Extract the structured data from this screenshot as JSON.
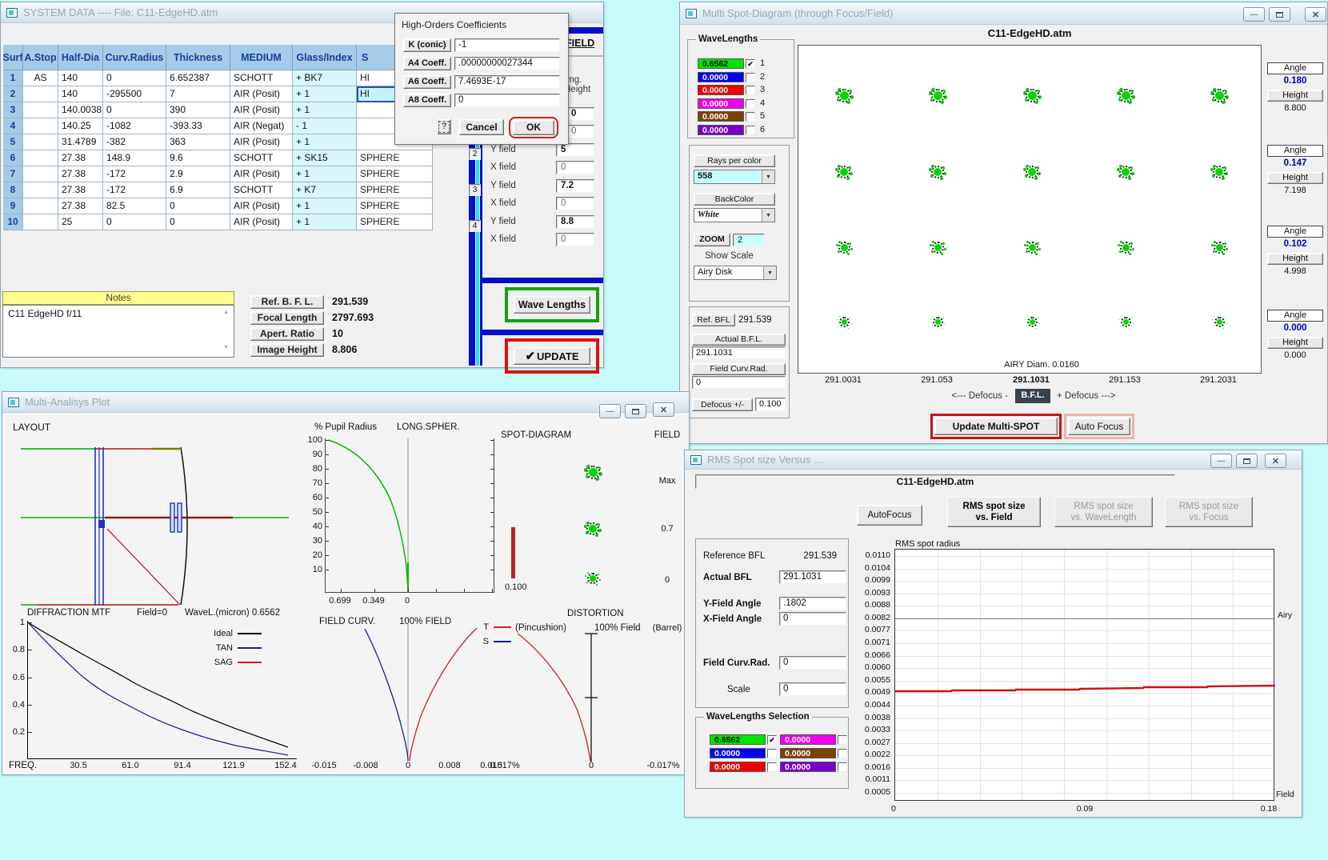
{
  "desktop_bg": "#c9fafa",
  "system_window": {
    "title": "SYSTEM  DATA  ----  File:  C11-EdgeHD.atm",
    "table": {
      "headers": [
        "Surf",
        "A.Stop",
        "Half-Dia",
        "Curv.Radius",
        "Thickness",
        "MEDIUM",
        "Glass/Index",
        "S"
      ],
      "rows": [
        [
          "1",
          "AS",
          "140",
          "0",
          "6.652387",
          "SCHOTT",
          "+ BK7",
          "HI"
        ],
        [
          "2",
          "",
          "140",
          "-295500",
          "7",
          "AIR (Posit)",
          "+ 1",
          "HI"
        ],
        [
          "3",
          "",
          "140.0038",
          "0",
          "390",
          "AIR (Posit)",
          "+ 1",
          ""
        ],
        [
          "4",
          "",
          "140.25",
          "-1082",
          "-393.33",
          "AIR (Negat)",
          "- 1",
          ""
        ],
        [
          "5",
          "",
          "31.4789",
          "-382",
          "363",
          "AIR (Posit)",
          "+ 1",
          ""
        ],
        [
          "6",
          "",
          "27.38",
          "148.9",
          "9.6",
          "SCHOTT",
          "+ SK15",
          "SPHERE"
        ],
        [
          "7",
          "",
          "27.38",
          "-172",
          "2.9",
          "AIR (Posit)",
          "+ 1",
          "SPHERE"
        ],
        [
          "8",
          "",
          "27.38",
          "-172",
          "6.9",
          "SCHOTT",
          "+ K7",
          "SPHERE"
        ],
        [
          "9",
          "",
          "27.38",
          "82.5",
          "0",
          "AIR (Posit)",
          "+ 1",
          "SPHERE"
        ],
        [
          "10",
          "",
          "25",
          "0",
          "0",
          "AIR (Posit)",
          "+ 1",
          "SPHERE"
        ]
      ],
      "selected_cell": {
        "row": 2,
        "col": 7
      }
    },
    "notes": {
      "header": "Notes",
      "text": "C11 EdgeHD f/11"
    },
    "summary": [
      {
        "label": "Ref.   B. F. L.",
        "value": "291.539"
      },
      {
        "label": "Focal  Length",
        "value": "2797.693"
      },
      {
        "label": "Apert. Ratio",
        "value": "10"
      },
      {
        "label": "Image Height",
        "value": "8.806"
      }
    ],
    "field_panel": {
      "title": "FIELD",
      "img_height_label": "Img. Height",
      "groups": [
        {
          "n": "1",
          "y_label": "Y field",
          "y": "0",
          "x_label": "X field",
          "x": "0"
        },
        {
          "n": "2",
          "y_label": "Y field",
          "y": "5",
          "x_label": "X field",
          "x": "0"
        },
        {
          "n": "3",
          "y_label": "Y field",
          "y": "7.2",
          "x_label": "X field",
          "x": "0"
        },
        {
          "n": "4",
          "y_label": "Y field",
          "y": "8.8",
          "x_label": "X field",
          "x": "0"
        }
      ]
    },
    "wave_lengths_button": "Wave Lengths",
    "update_check": "✔",
    "update_button": "UPDATE"
  },
  "high_orders_dialog": {
    "title": "High-Orders Coefficients",
    "fields": [
      {
        "label": "K (conic)",
        "value": "-1"
      },
      {
        "label": "A4 Coeff.",
        "value": ".00000000027344"
      },
      {
        "label": "A6 Coeff.",
        "value": "7.4693E-17"
      },
      {
        "label": "A8 Coeff.",
        "value": "0"
      }
    ],
    "help_button": "?",
    "cancel_button": "Cancel",
    "ok_button": "OK"
  },
  "spot_window": {
    "title": "Multi Spot-Diagram   (through Focus/Field)",
    "chart_title": "C11-EdgeHD.atm",
    "wavelengths": {
      "title": "WaveLengths",
      "rows": [
        {
          "value": "0.6562",
          "color": "#00e400",
          "text_color": "#000000",
          "checked": true,
          "num": "1"
        },
        {
          "value": "0.0000",
          "color": "#0000ee",
          "text_color": "#ffffff",
          "checked": false,
          "num": "2"
        },
        {
          "value": "0.0000",
          "color": "#ee0000",
          "text_color": "#ffffff",
          "checked": false,
          "num": "3"
        },
        {
          "value": "0.0000",
          "color": "#ee00ee",
          "text_color": "#ffffff",
          "checked": false,
          "num": "4"
        },
        {
          "value": "0.0000",
          "color": "#7a4208",
          "text_color": "#ffffff",
          "checked": false,
          "num": "5"
        },
        {
          "value": "0.0000",
          "color": "#7700cc",
          "text_color": "#ffffff",
          "checked": false,
          "num": "6"
        }
      ]
    },
    "rays_per_color_label": "Rays per color",
    "rays_per_color_value": "558",
    "backcolor_label": "BackColor",
    "backcolor_value": "White",
    "zoom_label": "ZOOM",
    "zoom_value": "2",
    "show_scale_label": "Show Scale",
    "show_scale_value": "Airy Disk",
    "ref_bfl_label": "Ref.  BFL",
    "ref_bfl_value": "291.539",
    "actual_bfl_label": "Actual  B.F.L.",
    "actual_bfl_value": "291.1031",
    "field_curv_label": "Field Curv.Rad.",
    "field_curv_value": "0",
    "defocus_label": "Defocus +/-",
    "defocus_value": "0.100",
    "airy_note": "AIRY Diam. 0.0160",
    "axis_labels": [
      "291.0031",
      "291.053",
      "291.1031",
      "291.153",
      "291.2031"
    ],
    "axis_bold_index": 2,
    "caption_left": "<---  Defocus  -",
    "bfl_badge": "B.F.L.",
    "caption_right": "+ Defocus --->",
    "update_button": "Update  Multi-SPOT",
    "autofocus_button": "Auto Focus",
    "angle_label": "Angle",
    "height_label": "Height",
    "field_points": [
      {
        "angle": "0.180",
        "height": "8.800"
      },
      {
        "angle": "0.147",
        "height": "7.198"
      },
      {
        "angle": "0.102",
        "height": "4.998"
      },
      {
        "angle": "0.000",
        "height": "0.000"
      }
    ]
  },
  "analysis_window": {
    "title": "Multi-Analisys Plot",
    "layout_label": "LAYOUT",
    "longspher": {
      "ylabel": "% Pupil Radius",
      "title": "LONG.SPHER.",
      "yticks": [
        "100",
        "90",
        "80",
        "70",
        "60",
        "50",
        "40",
        "30",
        "20",
        "10"
      ],
      "xticks": [
        "0.699",
        "0.349",
        "0"
      ]
    },
    "spot": {
      "title": "SPOT-DIAGRAM",
      "scale_value": "0.100",
      "field_title": "FIELD",
      "field_values": [
        "Max",
        "0.7",
        "0"
      ]
    },
    "mtf": {
      "title": "DIFFRACTION  MTF",
      "field_note": "Field=0",
      "wave_note": "WaveL.(micron)  0.6562",
      "yticks": [
        "1",
        "0.8",
        "0.6",
        "0.4",
        "0.2"
      ],
      "xlabel": "FREQ.",
      "xticks": [
        "30.5",
        "61.0",
        "91.4",
        "121.9",
        "152.4"
      ],
      "legend": [
        {
          "name": "Ideal",
          "color": "#000000"
        },
        {
          "name": "TAN",
          "color": "#1a1a8c"
        },
        {
          "name": "SAG",
          "color": "#cc2222"
        }
      ]
    },
    "fieldcurv": {
      "title": "FIELD CURV.",
      "subtitle": "100% FIELD",
      "xticks": [
        "-0.015",
        "-0.008",
        "0",
        "0.008",
        "0.015"
      ],
      "legend": [
        {
          "name": "T",
          "color": "#cc2222"
        },
        {
          "name": "S",
          "color": "#1a1a8c"
        }
      ]
    },
    "distortion": {
      "title": "DISTORTION",
      "left_note": "(Pincushion)",
      "center_note": "100% Field",
      "right_note": "(Barrel)",
      "xticks": [
        "0.017%",
        "0",
        "-0.017%"
      ]
    }
  },
  "rms_window": {
    "title": "RMS Spot size Versus ....",
    "file_name": "C11-EdgeHD.atm",
    "autofocus_button": "AutoFocus",
    "tab_buttons": [
      {
        "line1": "RMS spot size",
        "line2": "vs. Field",
        "enabled": true
      },
      {
        "line1": "RMS spot size",
        "line2": "vs. WaveLength",
        "enabled": false
      },
      {
        "line1": "RMS spot size",
        "line2": "vs. Focus",
        "enabled": false
      }
    ],
    "params": [
      {
        "label": "Reference  BFL",
        "value": "291.539",
        "input": false,
        "bold": false
      },
      {
        "label": "Actual  BFL",
        "value": "291.1031",
        "input": true,
        "bold": true
      },
      {
        "label": "Y-Field Angle",
        "value": ".1802",
        "input": true,
        "bold": true
      },
      {
        "label": "X-Field Angle",
        "value": "0",
        "input": true,
        "bold": true
      },
      {
        "label": "Field Curv.Rad.",
        "value": "0",
        "input": true,
        "bold": true
      },
      {
        "label": "Scale",
        "value": "0",
        "input": true,
        "bold": false
      }
    ],
    "wl_title": "WaveLengths Selection",
    "wl_left": [
      {
        "value": "0.6562",
        "color": "#00e400",
        "text_color": "#000000",
        "checked": true
      },
      {
        "value": "0.0000",
        "color": "#0000ee",
        "text_color": "#ffffff",
        "checked": false
      },
      {
        "value": "0.0000",
        "color": "#ee0000",
        "text_color": "#ffffff",
        "checked": false
      }
    ],
    "wl_right": [
      {
        "value": "0.0000",
        "color": "#ee00ee",
        "text_color": "#ffffff",
        "checked": false
      },
      {
        "value": "0.0000",
        "color": "#7a4208",
        "text_color": "#ffffff",
        "checked": false
      },
      {
        "value": "0.0000",
        "color": "#7700cc",
        "text_color": "#ffffff",
        "checked": false
      }
    ],
    "plot": {
      "title": "RMS spot radius",
      "yticks": [
        "0.0110",
        "0.0104",
        "0.0099",
        "0.0093",
        "0.0088",
        "0.0082",
        "0.0077",
        "0.0071",
        "0.0066",
        "0.0060",
        "0.0055",
        "0.0049",
        "0.0044",
        "0.0038",
        "0.0033",
        "0.0027",
        "0.0022",
        "0.0016",
        "0.0011",
        "0.0005"
      ],
      "airy_label": "Airy",
      "airy_tick_index": 5,
      "xticks": [
        "0",
        "0.09",
        "0.18"
      ],
      "xlabel": "Field"
    }
  },
  "chart_data": [
    {
      "type": "scatter",
      "title": "Multi Spot-Diagram (through Focus/Field)",
      "x_defocus_bfl": [
        291.0031,
        291.053,
        291.1031,
        291.153,
        291.2031
      ],
      "rows_field_angle": [
        0.18,
        0.147,
        0.102,
        0.0
      ],
      "rows_image_height": [
        8.8,
        7.198,
        4.998,
        0.0
      ],
      "airy_diameter": 0.016,
      "wavelength_micron": 0.6562,
      "rays_per_color": 558,
      "note": "20 spot diagrams in a 4x5 grid (field angle rows x defocus columns); all spots near Airy-disk scale"
    },
    {
      "type": "line",
      "title": "LONG.SPHER.",
      "ylabel": "% Pupil Radius",
      "ylim": [
        10,
        100
      ],
      "xticks": [
        0.699,
        0.349,
        0
      ],
      "series": [
        {
          "name": "0.6562 micron",
          "color": "#00cc00",
          "x_longspher": [
            0.69,
            0.45,
            0.25,
            0.12,
            0.05,
            0.01,
            0.0
          ],
          "y_pupil_pct": [
            100,
            80,
            60,
            40,
            25,
            15,
            10
          ]
        }
      ]
    },
    {
      "type": "line",
      "title": "DIFFRACTION MTF",
      "field": 0,
      "wavelength_micron": 0.6562,
      "xlabel": "FREQ.",
      "x": [
        0,
        30.5,
        61.0,
        91.4,
        121.9,
        152.4
      ],
      "ylim": [
        0,
        1
      ],
      "series": [
        {
          "name": "Ideal",
          "color": "#000000",
          "values": [
            1,
            0.78,
            0.57,
            0.38,
            0.22,
            0.09
          ]
        },
        {
          "name": "TAN",
          "color": "#1a1a8c",
          "values": [
            1,
            0.62,
            0.38,
            0.21,
            0.1,
            0.03
          ]
        },
        {
          "name": "SAG",
          "color": "#cc2222",
          "values": [
            1,
            0.62,
            0.38,
            0.21,
            0.1,
            0.03
          ]
        }
      ]
    },
    {
      "type": "line",
      "title": "FIELD CURV. (100% FIELD)",
      "xticks": [
        -0.015,
        -0.008,
        0,
        0.008,
        0.015
      ],
      "series": [
        {
          "name": "S",
          "color": "#1a1a8c",
          "focus_shift_at_100pct_field": -0.008
        },
        {
          "name": "T",
          "color": "#cc2222",
          "focus_shift_at_100pct_field": 0.013
        }
      ]
    },
    {
      "type": "line",
      "title": "DISTORTION (100% Field)",
      "xticks_pct": [
        0.017,
        0,
        -0.017
      ],
      "series": [
        {
          "name": "Distortion",
          "color": "#cc2222",
          "value_pct_at_100pct_field": -0.015
        }
      ]
    },
    {
      "type": "line",
      "title": "RMS spot radius vs Field",
      "xlabel": "Field",
      "x": [
        0,
        0.09,
        0.18
      ],
      "ylim": [
        0.0005,
        0.011
      ],
      "airy_level": 0.0082,
      "series": [
        {
          "name": "RMS spot radius",
          "color": "#cc0000",
          "values": [
            0.0052,
            0.0052,
            0.0054
          ]
        }
      ]
    }
  ]
}
